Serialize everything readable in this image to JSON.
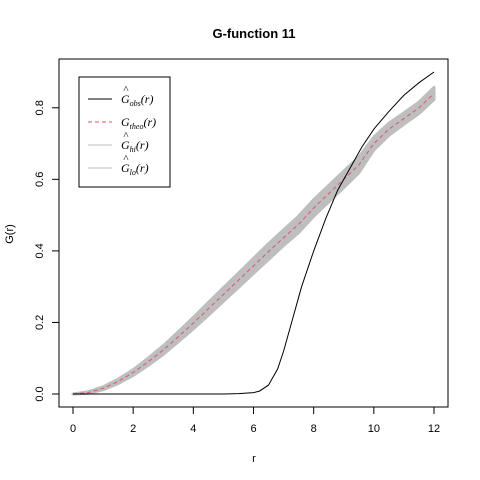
{
  "chart_data": {
    "type": "line",
    "title": "G-function 11",
    "xlabel": "r",
    "ylabel": "G(r)",
    "xlim": [
      0,
      12
    ],
    "ylim": [
      0,
      0.9
    ],
    "xticks": [
      0,
      2,
      4,
      6,
      8,
      10,
      12
    ],
    "yticks": [
      0.0,
      0.2,
      0.4,
      0.6,
      0.8
    ],
    "ytick_labels": [
      "0.0",
      "0.2",
      "0.4",
      "0.6",
      "0.8"
    ],
    "legend_position": "top-left",
    "legend": [
      {
        "base": "G",
        "hat": true,
        "sub": "obs",
        "arg": "(r)",
        "style": "solid",
        "color": "#000000"
      },
      {
        "base": "G",
        "hat": false,
        "sub": "theo",
        "arg": "(r)",
        "style": "dashed",
        "color": "#df536b"
      },
      {
        "base": "G",
        "hat": true,
        "sub": "hi",
        "arg": "(r)",
        "style": "solid",
        "color": "#bebebe"
      },
      {
        "base": "G",
        "hat": true,
        "sub": "lo",
        "arg": "(r)",
        "style": "solid",
        "color": "#bebebe"
      }
    ],
    "series": [
      {
        "name": "obs",
        "x": [
          0,
          1,
          2,
          3,
          4,
          5,
          5.5,
          6.0,
          6.2,
          6.5,
          6.8,
          7.0,
          7.3,
          7.6,
          8.0,
          8.4,
          8.8,
          9.2,
          9.6,
          10.0,
          10.5,
          11.0,
          11.5,
          12.0
        ],
        "y": [
          0,
          0,
          0,
          0,
          0,
          0,
          0.001,
          0.004,
          0.008,
          0.025,
          0.07,
          0.12,
          0.21,
          0.3,
          0.4,
          0.49,
          0.57,
          0.63,
          0.69,
          0.74,
          0.79,
          0.835,
          0.87,
          0.9
        ]
      },
      {
        "name": "theo",
        "x": [
          0,
          0.5,
          1,
          1.5,
          2,
          2.5,
          3,
          3.5,
          4,
          4.5,
          5,
          5.5,
          6,
          6.5,
          7,
          7.5,
          8,
          8.5,
          9,
          9.5,
          10,
          10.5,
          11,
          11.5,
          12
        ],
        "y": [
          0,
          0.004,
          0.016,
          0.035,
          0.06,
          0.09,
          0.123,
          0.16,
          0.198,
          0.238,
          0.278,
          0.318,
          0.358,
          0.398,
          0.437,
          0.474,
          0.52,
          0.56,
          0.6,
          0.64,
          0.7,
          0.74,
          0.77,
          0.8,
          0.84
        ]
      },
      {
        "name": "hi",
        "x": [
          0,
          0.5,
          1,
          1.5,
          2,
          2.5,
          3,
          3.5,
          4,
          4.5,
          5,
          5.5,
          6,
          6.5,
          7,
          7.5,
          8,
          8.5,
          9,
          9.5,
          10,
          10.5,
          11,
          11.5,
          12
        ],
        "y": [
          0,
          0.006,
          0.02,
          0.041,
          0.068,
          0.1,
          0.135,
          0.174,
          0.214,
          0.256,
          0.297,
          0.338,
          0.379,
          0.42,
          0.459,
          0.497,
          0.543,
          0.583,
          0.623,
          0.662,
          0.718,
          0.757,
          0.786,
          0.816,
          0.857
        ]
      },
      {
        "name": "lo",
        "x": [
          0,
          0.5,
          1,
          1.5,
          2,
          2.5,
          3,
          3.5,
          4,
          4.5,
          5,
          5.5,
          6,
          6.5,
          7,
          7.5,
          8,
          8.5,
          9,
          9.5,
          10,
          10.5,
          11,
          11.5,
          12
        ],
        "y": [
          0,
          0.002,
          0.012,
          0.029,
          0.052,
          0.08,
          0.111,
          0.146,
          0.182,
          0.22,
          0.259,
          0.298,
          0.337,
          0.376,
          0.415,
          0.451,
          0.497,
          0.537,
          0.577,
          0.618,
          0.682,
          0.723,
          0.754,
          0.784,
          0.823
        ]
      }
    ]
  }
}
